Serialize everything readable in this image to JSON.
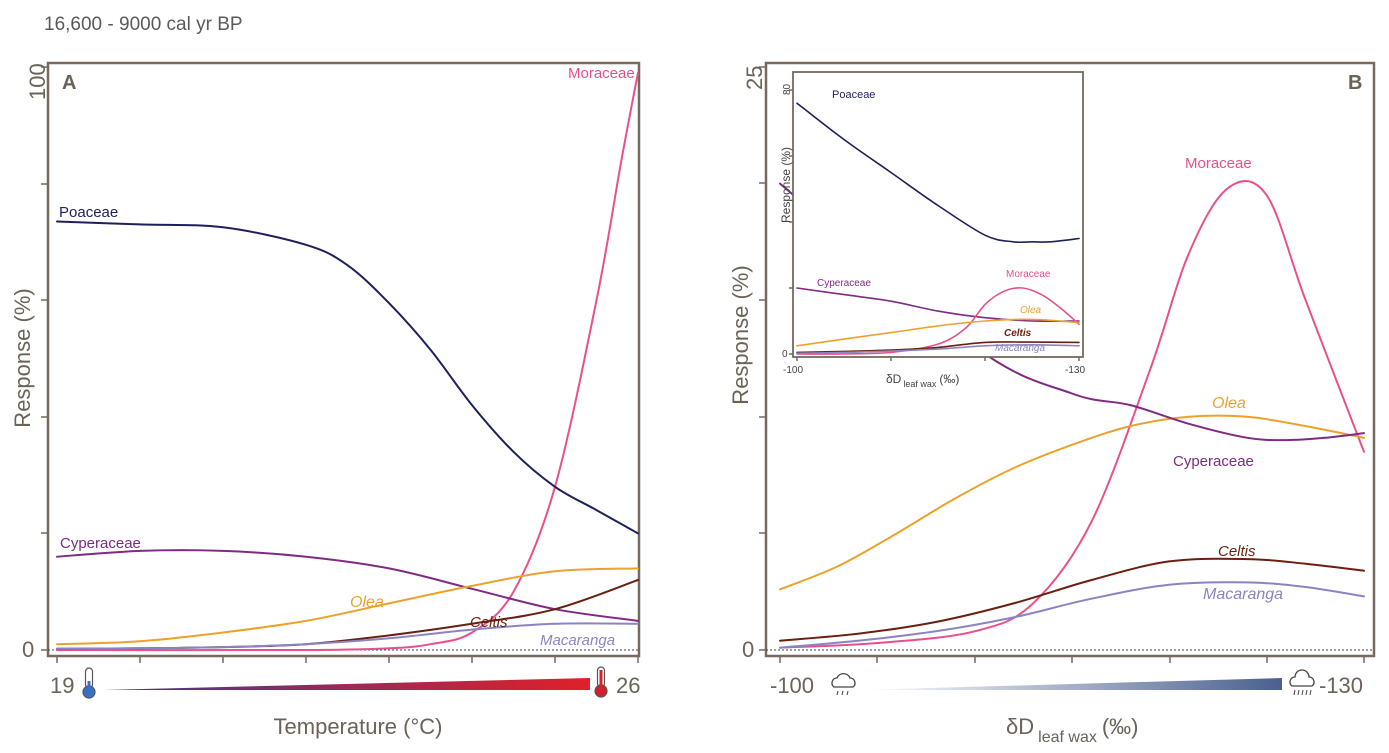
{
  "page_title": "16,600 - 9000 cal yr BP",
  "chart_data": [
    {
      "panel": "A",
      "type": "line",
      "xlabel": "Temperature (°C)",
      "ylabel": "Response (%)",
      "xlim": [
        19,
        26
      ],
      "ylim": [
        0,
        100
      ],
      "x_ticks_labeled": [
        "19",
        "26"
      ],
      "y_ticks_labeled": [
        "0",
        "100"
      ],
      "series": [
        {
          "name": "Moraceae",
          "color": "#e8508c",
          "x": [
            19,
            22,
            23,
            23.5,
            24,
            24.5,
            25,
            25.5,
            25.8,
            26
          ],
          "y": [
            0,
            0,
            0.3,
            1,
            3,
            10,
            28,
            60,
            84,
            99
          ]
        },
        {
          "name": "Poaceae",
          "color": "#1f1f5e",
          "x": [
            19,
            20,
            21,
            22,
            22.5,
            23,
            23.5,
            24,
            24.5,
            25,
            25.5,
            26
          ],
          "y": [
            73.5,
            73,
            72.5,
            69.5,
            66,
            59.5,
            51.5,
            42,
            34,
            28,
            24,
            20
          ]
        },
        {
          "name": "Cyperaceae",
          "color": "#7e2b84",
          "x": [
            19,
            20,
            21,
            22,
            23,
            24,
            25,
            26
          ],
          "y": [
            16,
            17,
            17,
            16,
            14,
            10.5,
            7,
            5
          ]
        },
        {
          "name": "Olea",
          "color": "#eba22c",
          "x": [
            19,
            20,
            21,
            22,
            23,
            24,
            25,
            26
          ],
          "y": [
            1,
            1.5,
            3,
            5,
            8,
            11,
            13.5,
            14
          ]
        },
        {
          "name": "Celtis",
          "color": "#6b1f10",
          "x": [
            19,
            20,
            21,
            22,
            23,
            24,
            25,
            26
          ],
          "y": [
            0.2,
            0.3,
            0.5,
            1,
            2.5,
            4.5,
            7,
            12
          ]
        },
        {
          "name": "Macaranga",
          "color": "#8a84c4",
          "x": [
            19,
            20,
            21,
            22,
            23,
            24,
            25,
            26
          ],
          "y": [
            0.2,
            0.3,
            0.5,
            1,
            2,
            3.5,
            4.5,
            4.5
          ]
        }
      ]
    },
    {
      "panel": "B",
      "type": "line",
      "xlabel": "δD leaf wax (‰)",
      "ylabel": "Response (%)",
      "xlim": [
        -100,
        -130
      ],
      "ylim": [
        0,
        25
      ],
      "x_ticks_labeled": [
        "-100",
        "-130"
      ],
      "y_ticks_labeled": [
        "0",
        "25"
      ],
      "series": [
        {
          "name": "Moraceae",
          "color": "#e8508c",
          "x": [
            -100,
            -105,
            -110,
            -113,
            -116,
            -119,
            -121,
            -123,
            -125,
            -127,
            -130
          ],
          "y": [
            0.1,
            0.3,
            0.8,
            2,
            5.5,
            12,
            17,
            19.8,
            19.5,
            15,
            8.5
          ]
        },
        {
          "name": "Olea",
          "color": "#eba22c",
          "x": [
            -100,
            -103,
            -106,
            -109,
            -112,
            -115,
            -118,
            -121,
            -124,
            -127,
            -130
          ],
          "y": [
            2.6,
            3.6,
            5,
            6.5,
            7.8,
            8.8,
            9.6,
            10,
            10,
            9.6,
            9.1
          ]
        },
        {
          "name": "Cyperaceae",
          "color": "#7e2b84",
          "x": [
            -100,
            -110,
            -115,
            -118,
            -121,
            -124,
            -126,
            -128,
            -130
          ],
          "y": [
            20,
            13,
            11,
            10.5,
            9.7,
            9.1,
            9,
            9.1,
            9.3
          ]
        },
        {
          "name": "Celtis",
          "color": "#6b1f10",
          "x": [
            -100,
            -104,
            -108,
            -112,
            -116,
            -120,
            -124,
            -127,
            -130
          ],
          "y": [
            0.4,
            0.7,
            1.2,
            2,
            3,
            3.8,
            3.9,
            3.7,
            3.4
          ]
        },
        {
          "name": "Macaranga",
          "color": "#8a84c4",
          "x": [
            -100,
            -104,
            -108,
            -112,
            -116,
            -120,
            -124,
            -127,
            -130
          ],
          "y": [
            0.1,
            0.4,
            0.8,
            1.4,
            2.2,
            2.8,
            2.9,
            2.7,
            2.3
          ]
        }
      ]
    },
    {
      "panel": "B inset",
      "type": "line",
      "xlabel": "δD leaf wax (‰)",
      "ylabel": "Response (%)",
      "xlim": [
        -100,
        -130
      ],
      "ylim": [
        0,
        80
      ],
      "x_ticks_labeled": [
        "-100",
        "-130"
      ],
      "y_ticks_labeled": [
        "0",
        "80"
      ],
      "series": [
        {
          "name": "Poaceae",
          "color": "#1f1f5e",
          "x": [
            -100,
            -105,
            -110,
            -115,
            -120,
            -123,
            -125,
            -127,
            -130
          ],
          "y": [
            76,
            65,
            55,
            45,
            36,
            34,
            34,
            34,
            35
          ]
        },
        {
          "name": "Cyperaceae",
          "color": "#7e2b84",
          "x": [
            -100,
            -105,
            -110,
            -115,
            -120,
            -125,
            -130
          ],
          "y": [
            20,
            18,
            16,
            13,
            11,
            10,
            10
          ]
        },
        {
          "name": "Moraceae",
          "color": "#e8508c",
          "x": [
            -100,
            -105,
            -110,
            -115,
            -118,
            -120,
            -122,
            -124,
            -126,
            -128,
            -130
          ],
          "y": [
            0,
            0,
            0.5,
            3,
            8,
            15,
            19,
            20,
            18,
            14,
            9
          ]
        },
        {
          "name": "Olea",
          "color": "#eba22c",
          "x": [
            -100,
            -105,
            -110,
            -115,
            -120,
            -125,
            -130
          ],
          "y": [
            2.5,
            4.5,
            6.5,
            8.5,
            10,
            10.5,
            9.5
          ]
        },
        {
          "name": "Celtis",
          "color": "#6b1f10",
          "x": [
            -100,
            -105,
            -110,
            -115,
            -120,
            -125,
            -130
          ],
          "y": [
            0.5,
            0.8,
            1.2,
            2,
            3.5,
            3.6,
            3.5
          ]
        },
        {
          "name": "Macaranga",
          "color": "#8a84c4",
          "x": [
            -100,
            -105,
            -110,
            -115,
            -120,
            -125,
            -130
          ],
          "y": [
            0.2,
            0.5,
            0.9,
            1.5,
            2.5,
            2.8,
            2.5
          ]
        }
      ]
    }
  ],
  "panelA": {
    "letter": "A",
    "ylabel": "Response (%)",
    "xlabel": "Temperature (°C)",
    "ytick_top": "100",
    "ytick_bottom": "0",
    "xtick_left": "19",
    "xtick_right": "26",
    "labels": {
      "moraceae": "Moraceae",
      "poaceae": "Poaceae",
      "cyperaceae": "Cyperaceae",
      "olea": "Olea",
      "celtis": "Celtis",
      "macaranga": "Macaranga"
    }
  },
  "panelB": {
    "letter": "B",
    "ylabel": "Response (%)",
    "xlabel_main": "δD",
    "xlabel_sub": "leaf wax",
    "xlabel_unit": "(‰)",
    "ytick_top": "25",
    "ytick_bottom": "0",
    "xtick_left": "-100",
    "xtick_right": "-130",
    "labels": {
      "moraceae": "Moraceae",
      "olea": "Olea",
      "cyperaceae": "Cyperaceae",
      "celtis": "Celtis",
      "macaranga": "Macaranga"
    }
  },
  "inset": {
    "ylabel": "Response (%)",
    "ytick_top": "80",
    "ytick_bottom": "0",
    "xtick_left": "-100",
    "xtick_right": "-130",
    "xlabel_main": "δD",
    "xlabel_sub": "leaf wax",
    "xlabel_unit": "(‰)",
    "labels": {
      "poaceae": "Poaceae",
      "cyperaceae": "Cyperaceae",
      "moraceae": "Moraceae",
      "olea": "Olea",
      "celtis": "Celtis",
      "macaranga": "Macaranga"
    }
  },
  "colors": {
    "frame": "#756a5c",
    "text": "#6b6358",
    "moraceae": "#e8508c",
    "poaceae": "#1f1f5e",
    "cyperaceae": "#7e2b84",
    "olea": "#eba22c",
    "celtis": "#6b1f10",
    "macaranga": "#8a84c4"
  },
  "icons": {
    "cold": "thermometer-cold-icon",
    "hot": "thermometer-hot-icon",
    "light_rain": "light-rain-cloud-icon",
    "heavy_rain": "heavy-rain-cloud-icon"
  }
}
